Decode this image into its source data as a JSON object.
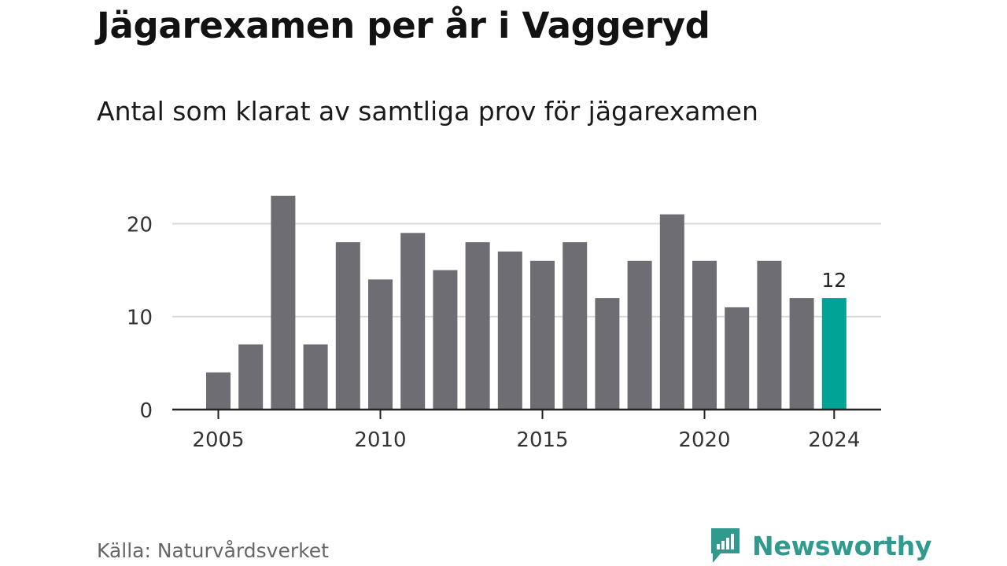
{
  "title": "Jägarexamen per år i Vaggeryd",
  "subtitle": "Antal som klarat av samtliga prov för jägarexamen",
  "source": "Källa: Naturvårdsverket",
  "brand": {
    "name": "Newsworthy",
    "color": "#2f9a8d"
  },
  "colors": {
    "bar": "#6e6d73",
    "highlight": "#00a396",
    "grid": "#d9d9d9",
    "axis": "#222222"
  },
  "chart_data": {
    "type": "bar",
    "title": "Jägarexamen per år i Vaggeryd",
    "subtitle": "Antal som klarat av samtliga prov för jägarexamen",
    "x": [
      2005,
      2006,
      2007,
      2008,
      2009,
      2010,
      2011,
      2012,
      2013,
      2014,
      2015,
      2016,
      2017,
      2018,
      2019,
      2020,
      2021,
      2022,
      2023,
      2024
    ],
    "values": [
      4,
      7,
      23,
      7,
      18,
      14,
      19,
      15,
      18,
      17,
      16,
      18,
      12,
      16,
      21,
      16,
      11,
      16,
      12,
      12
    ],
    "highlight_index": 19,
    "data_labels": [
      {
        "index": 19,
        "text": "12"
      }
    ],
    "x_ticks": [
      "2005",
      "2010",
      "2015",
      "2020",
      "2024"
    ],
    "y_ticks": [
      "0",
      "10",
      "20"
    ],
    "ylim": [
      0,
      23
    ],
    "grid": true,
    "legend": "none"
  }
}
